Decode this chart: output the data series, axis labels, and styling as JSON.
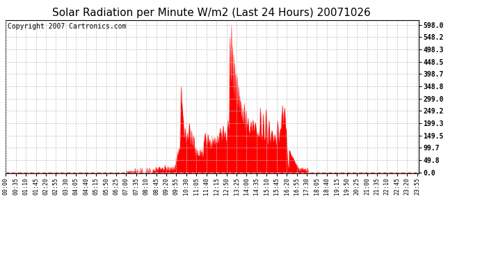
{
  "title": "Solar Radiation per Minute W/m2 (Last 24 Hours) 20071026",
  "copyright_text": "Copyright 2007 Cartronics.com",
  "fill_color": "#FF0000",
  "line_color": "#FF0000",
  "background_color": "#FFFFFF",
  "grid_color": "#C0C0C0",
  "dashed_line_color": "#FF0000",
  "ytick_values": [
    0.0,
    49.8,
    99.7,
    149.5,
    199.3,
    249.2,
    299.0,
    348.8,
    398.7,
    448.5,
    498.3,
    548.2,
    598.0
  ],
  "ytick_labels": [
    "0.0",
    "49.8",
    "99.7",
    "149.5",
    "199.3",
    "249.2",
    "299.0",
    "348.8",
    "398.7",
    "448.5",
    "498.3",
    "548.2",
    "598.0"
  ],
  "ymax": 618.0,
  "ymin": -5.0,
  "xmin": 0,
  "xmax": 1440,
  "title_fontsize": 11,
  "copyright_fontsize": 7,
  "tick_label_fontsize": 6,
  "ytick_fontsize": 7
}
